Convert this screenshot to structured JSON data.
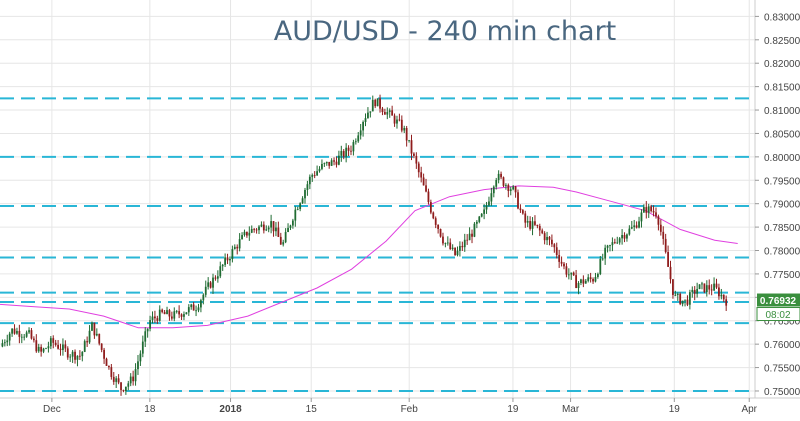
{
  "chart_data": {
    "type": "candlestick",
    "title": "AUD/USD - 240 min chart",
    "ylim": [
      0.7485,
      0.8335
    ],
    "y_ticks": [
      "0.83000",
      "0.82500",
      "0.82000",
      "0.81500",
      "0.81000",
      "0.80500",
      "0.80000",
      "0.79500",
      "0.79000",
      "0.78500",
      "0.78000",
      "0.77500",
      "0.77000",
      "0.76500",
      "0.76000",
      "0.75500",
      "0.75000"
    ],
    "x_ticks": [
      {
        "label": "Dec",
        "date": "2017-12-01"
      },
      {
        "label": "18",
        "date": "2017-12-18"
      },
      {
        "label": "2018",
        "date": "2018-01-01"
      },
      {
        "label": "15",
        "date": "2018-01-15"
      },
      {
        "label": "Feb",
        "date": "2018-02-01"
      },
      {
        "label": "19",
        "date": "2018-02-19"
      },
      {
        "label": "Mar",
        "date": "2018-03-01"
      },
      {
        "label": "19",
        "date": "2018-03-19"
      },
      {
        "label": "Apr",
        "date": "2018-04-01"
      }
    ],
    "xlim": [
      "2017-11-22",
      "2018-04-02"
    ],
    "horizontal_levels": [
      0.8125,
      0.8,
      0.7895,
      0.7785,
      0.771,
      0.769,
      0.7645,
      0.75
    ],
    "price_path": [
      [
        "2017-11-22",
        0.7595
      ],
      [
        "2017-11-24",
        0.763
      ],
      [
        "2017-11-27",
        0.762
      ],
      [
        "2017-11-29",
        0.758
      ],
      [
        "2017-12-01",
        0.7605
      ],
      [
        "2017-12-04",
        0.758
      ],
      [
        "2017-12-06",
        0.7575
      ],
      [
        "2017-12-08",
        0.764
      ],
      [
        "2017-12-11",
        0.7545
      ],
      [
        "2017-12-13",
        0.7505
      ],
      [
        "2017-12-15",
        0.7525
      ],
      [
        "2017-12-18",
        0.765
      ],
      [
        "2017-12-20",
        0.7665
      ],
      [
        "2017-12-22",
        0.766
      ],
      [
        "2017-12-26",
        0.768
      ],
      [
        "2017-12-28",
        0.772
      ],
      [
        "2018-01-02",
        0.781
      ],
      [
        "2018-01-04",
        0.784
      ],
      [
        "2018-01-08",
        0.786
      ],
      [
        "2018-01-10",
        0.781
      ],
      [
        "2018-01-12",
        0.788
      ],
      [
        "2018-01-15",
        0.796
      ],
      [
        "2018-01-17",
        0.798
      ],
      [
        "2018-01-19",
        0.799
      ],
      [
        "2018-01-22",
        0.802
      ],
      [
        "2018-01-24",
        0.808
      ],
      [
        "2018-01-26",
        0.812
      ],
      [
        "2018-01-29",
        0.8085
      ],
      [
        "2018-01-31",
        0.806
      ],
      [
        "2018-02-02",
        0.799
      ],
      [
        "2018-02-05",
        0.788
      ],
      [
        "2018-02-07",
        0.782
      ],
      [
        "2018-02-09",
        0.779
      ],
      [
        "2018-02-12",
        0.784
      ],
      [
        "2018-02-14",
        0.788
      ],
      [
        "2018-02-16",
        0.796
      ],
      [
        "2018-02-19",
        0.793
      ],
      [
        "2018-02-21",
        0.786
      ],
      [
        "2018-02-23",
        0.785
      ],
      [
        "2018-02-26",
        0.781
      ],
      [
        "2018-02-28",
        0.776
      ],
      [
        "2018-03-02",
        0.773
      ],
      [
        "2018-03-05",
        0.774
      ],
      [
        "2018-03-07",
        0.7795
      ],
      [
        "2018-03-09",
        0.7825
      ],
      [
        "2018-03-12",
        0.785
      ],
      [
        "2018-03-14",
        0.789
      ],
      [
        "2018-03-16",
        0.788
      ],
      [
        "2018-03-19",
        0.77
      ],
      [
        "2018-03-21",
        0.769
      ],
      [
        "2018-03-23",
        0.772
      ],
      [
        "2018-03-26",
        0.772
      ],
      [
        "2018-03-28",
        0.7693
      ]
    ],
    "moving_average": [
      [
        "2017-11-22",
        0.7685
      ],
      [
        "2017-11-28",
        0.768
      ],
      [
        "2017-12-04",
        0.7675
      ],
      [
        "2017-12-10",
        0.766
      ],
      [
        "2017-12-16",
        0.7635
      ],
      [
        "2017-12-22",
        0.7635
      ],
      [
        "2017-12-28",
        0.764
      ],
      [
        "2018-01-04",
        0.766
      ],
      [
        "2018-01-10",
        0.769
      ],
      [
        "2018-01-16",
        0.772
      ],
      [
        "2018-01-22",
        0.776
      ],
      [
        "2018-01-28",
        0.782
      ],
      [
        "2018-02-02",
        0.7885
      ],
      [
        "2018-02-08",
        0.7915
      ],
      [
        "2018-02-14",
        0.793
      ],
      [
        "2018-02-20",
        0.7938
      ],
      [
        "2018-02-26",
        0.7935
      ],
      [
        "2018-03-02",
        0.7925
      ],
      [
        "2018-03-08",
        0.7905
      ],
      [
        "2018-03-14",
        0.7885
      ],
      [
        "2018-03-20",
        0.7845
      ],
      [
        "2018-03-26",
        0.7822
      ],
      [
        "2018-03-30",
        0.7815
      ]
    ],
    "last_price": "0.76932",
    "countdown": "08:02",
    "colors": {
      "up_candle": "#1f6b32",
      "down_candle": "#8f1c1c",
      "level_line": "#29b6d6",
      "moving_average": "#e040e0",
      "grid": "#e6e6e6",
      "title": "#4a6780",
      "price_tag": "#3a8f3e",
      "countdown_tag": "#3a8f3e",
      "axis_text": "#444444"
    }
  }
}
